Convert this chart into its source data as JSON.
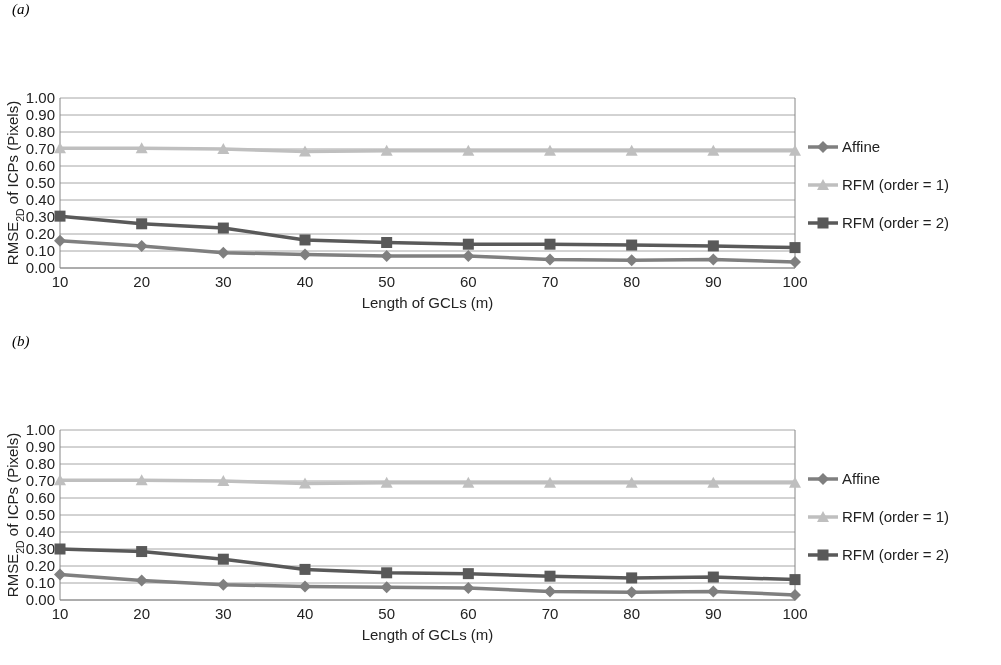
{
  "chart_data": [
    {
      "type": "line",
      "title": "(a)",
      "xlabel": "Length of GCLs (m)",
      "ylabel": "RMSE$_{2D}$ of ICPs (Pixels)",
      "categories": [
        "10",
        "20",
        "30",
        "40",
        "50",
        "60",
        "70",
        "80",
        "90",
        "100"
      ],
      "ylim": [
        0,
        1
      ],
      "yticks": [
        {
          "value": 0,
          "label": "0.00"
        },
        {
          "value": 0.1,
          "label": "0.10"
        },
        {
          "value": 0.2,
          "label": "0.20"
        },
        {
          "value": 0.3,
          "label": "0.30"
        },
        {
          "value": 0.4,
          "label": "0.40"
        },
        {
          "value": 0.5,
          "label": "0.50"
        },
        {
          "value": 0.6,
          "label": "0.60"
        },
        {
          "value": 0.7,
          "label": "0.70"
        },
        {
          "value": 0.8,
          "label": "0.80"
        },
        {
          "value": 0.9,
          "label": "0.90"
        },
        {
          "value": 1,
          "label": "1.00"
        }
      ],
      "grid": "y",
      "legend": "right",
      "series": [
        {
          "name": "Affine",
          "color": "#7f7f7f",
          "marker": "diamond",
          "values": [
            0.16,
            0.13,
            0.09,
            0.08,
            0.07,
            0.07,
            0.05,
            0.045,
            0.05,
            0.035
          ]
        },
        {
          "name": "RFM (order = 1)",
          "color": "#bfbfbf",
          "marker": "triangle",
          "values": [
            0.705,
            0.705,
            0.7,
            0.685,
            0.69,
            0.69,
            0.69,
            0.69,
            0.69,
            0.69
          ]
        },
        {
          "name": "RFM (order = 2)",
          "color": "#595959",
          "marker": "square",
          "values": [
            0.305,
            0.26,
            0.235,
            0.165,
            0.15,
            0.14,
            0.14,
            0.135,
            0.13,
            0.12
          ]
        }
      ]
    },
    {
      "type": "line",
      "title": "(b)",
      "xlabel": "Length of GCLs (m)",
      "ylabel": "RMSE$_{2D}$ of ICPs (Pixels)",
      "categories": [
        "10",
        "20",
        "30",
        "40",
        "50",
        "60",
        "70",
        "80",
        "90",
        "100"
      ],
      "ylim": [
        0,
        1
      ],
      "yticks": [
        {
          "value": 0,
          "label": "0.00"
        },
        {
          "value": 0.1,
          "label": "0.10"
        },
        {
          "value": 0.2,
          "label": "0.20"
        },
        {
          "value": 0.3,
          "label": "0.30"
        },
        {
          "value": 0.4,
          "label": "0.40"
        },
        {
          "value": 0.5,
          "label": "0.50"
        },
        {
          "value": 0.6,
          "label": "0.60"
        },
        {
          "value": 0.7,
          "label": "0.70"
        },
        {
          "value": 0.8,
          "label": "0.80"
        },
        {
          "value": 0.9,
          "label": "0.90"
        },
        {
          "value": 1,
          "label": "1.00"
        }
      ],
      "grid": "y",
      "legend": "right",
      "series": [
        {
          "name": "Affine",
          "color": "#7f7f7f",
          "marker": "diamond",
          "values": [
            0.15,
            0.115,
            0.09,
            0.08,
            0.075,
            0.07,
            0.05,
            0.045,
            0.05,
            0.03
          ]
        },
        {
          "name": "RFM (order = 1)",
          "color": "#bfbfbf",
          "marker": "triangle",
          "values": [
            0.705,
            0.705,
            0.7,
            0.685,
            0.69,
            0.69,
            0.69,
            0.69,
            0.69,
            0.69
          ]
        },
        {
          "name": "RFM (order = 2)",
          "color": "#595959",
          "marker": "square",
          "values": [
            0.3,
            0.285,
            0.24,
            0.18,
            0.16,
            0.155,
            0.14,
            0.13,
            0.135,
            0.12
          ]
        }
      ]
    }
  ]
}
